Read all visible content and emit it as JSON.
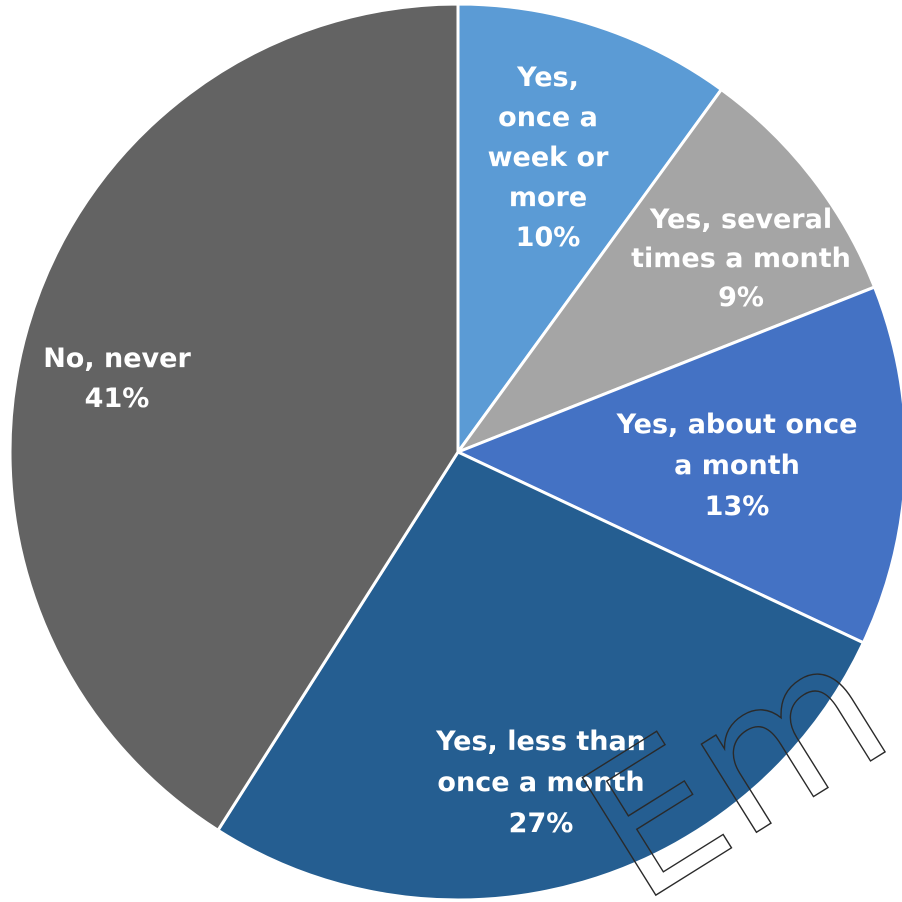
{
  "chart_data": {
    "type": "pie",
    "slices": [
      {
        "lines": [
          "Yes,",
          "once a",
          "week or",
          "more",
          "10%"
        ],
        "value": 10,
        "color": "#5b9bd5",
        "text_color": "#ffffff"
      },
      {
        "lines": [
          "Yes, several",
          "times a month",
          "9%"
        ],
        "value": 9,
        "color": "#a5a5a5",
        "text_color": "#ffffff"
      },
      {
        "lines": [
          "Yes, about once",
          "a month",
          "13%"
        ],
        "value": 13,
        "color": "#4472c4",
        "text_color": "#ffffff"
      },
      {
        "lines": [
          "Yes, less than",
          "once a month",
          "27%"
        ],
        "value": 27,
        "color": "#255e91",
        "text_color": "#ffffff"
      },
      {
        "lines": [
          "No, never",
          "41%"
        ],
        "value": 41,
        "color": "#636363",
        "text_color": "#ffffff"
      }
    ],
    "start_angle_deg": 0,
    "direction": "clockwise",
    "legend": "none"
  },
  "watermark": {
    "text": "Em"
  }
}
